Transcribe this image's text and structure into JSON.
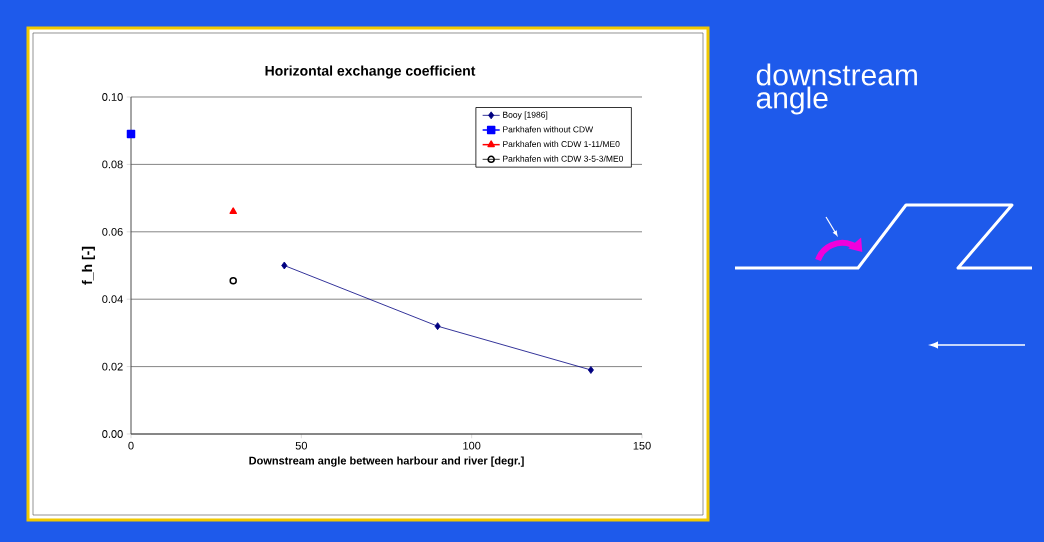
{
  "chart_data": {
    "type": "line",
    "title": "Horizontal exchange coefficient",
    "xlabel": "Downstream angle between harbour and river [degr.]",
    "ylabel": "f_h [-]",
    "xlim": [
      0,
      150
    ],
    "xticks": [
      0,
      50,
      100,
      150
    ],
    "ylim": [
      0,
      0.1
    ],
    "yticks": [
      {
        "value": 0,
        "label": "0.00"
      },
      {
        "value": 0.02,
        "label": "0.02"
      },
      {
        "value": 0.04,
        "label": "0.04"
      },
      {
        "value": 0.06,
        "label": "0.06"
      },
      {
        "value": 0.08,
        "label": "0.08"
      },
      {
        "value": 0.1,
        "label": "0.10"
      }
    ],
    "grid": "y",
    "legend": "top right",
    "series": [
      {
        "name": "Booy [1986]",
        "color": "#000080",
        "marker": "diamond",
        "line_style": "solid",
        "x": [
          45,
          90,
          135
        ],
        "values": [
          0.05,
          0.032,
          0.019
        ]
      },
      {
        "name": "Parkhafen without CDW",
        "color": "#0000ff",
        "marker": "square",
        "line_style": "solid",
        "x": [
          0
        ],
        "values": [
          0.089
        ]
      },
      {
        "name": "Parkhafen with CDW 1-11/ME0",
        "color": "#ff0000",
        "marker": "triangle",
        "line_style": "solid",
        "x": [
          30
        ],
        "values": [
          0.066
        ]
      },
      {
        "name": "Parkhafen with CDW 3-5-3/ME0",
        "color": "#000000",
        "marker": "circle",
        "line_style": "none",
        "x": [
          30
        ],
        "values": [
          0.0455
        ]
      }
    ],
    "annotations": [
      "downstream angle"
    ]
  }
}
